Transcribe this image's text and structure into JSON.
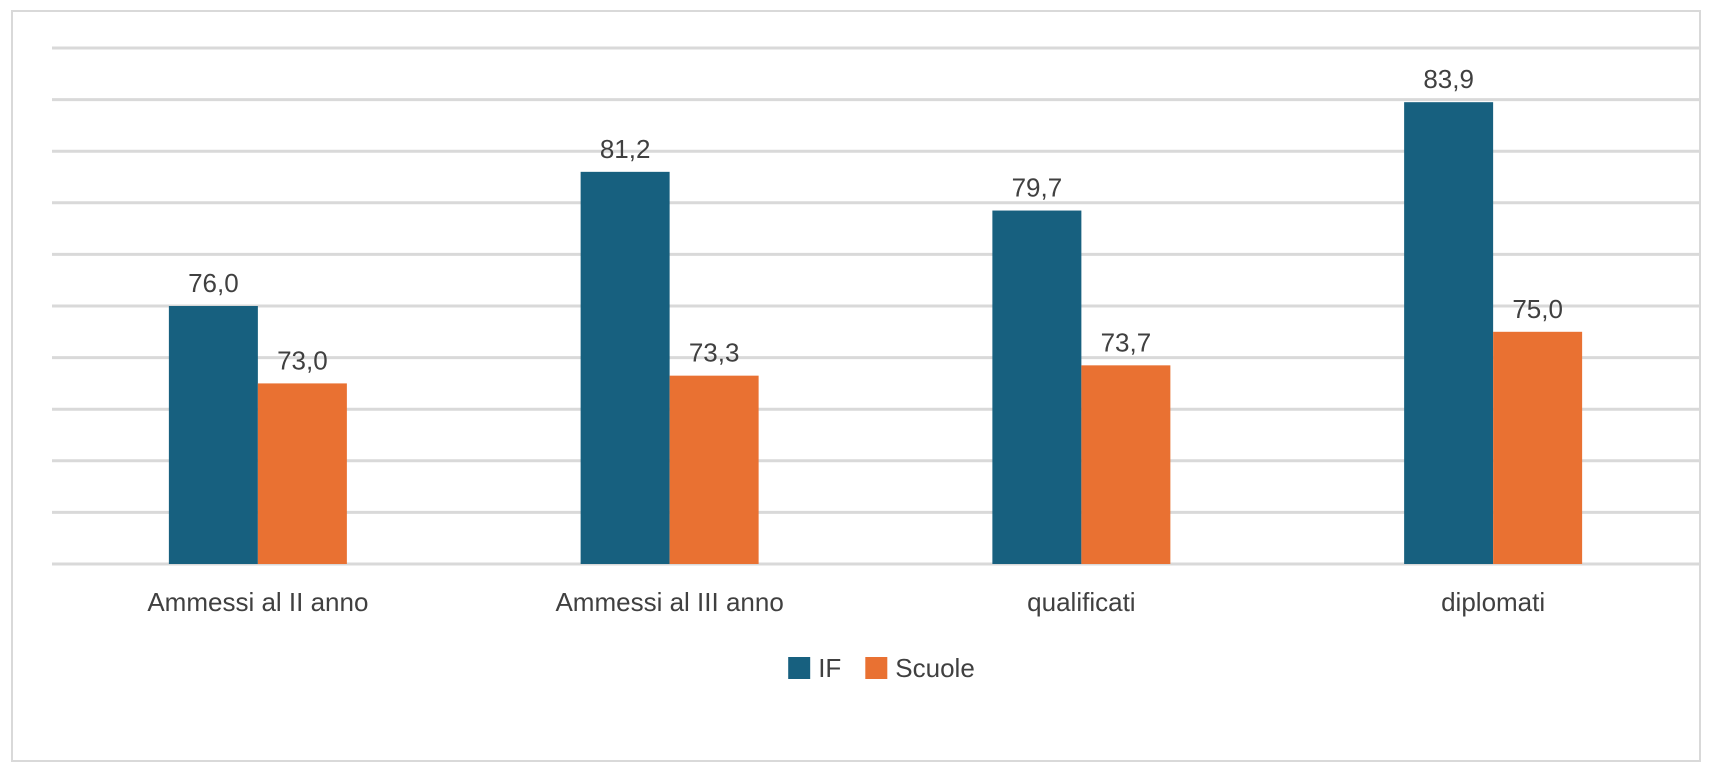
{
  "chart_data": {
    "type": "bar",
    "title": "",
    "xlabel": "",
    "ylabel": "",
    "categories": [
      "Ammessi al II anno",
      "Ammessi al III anno",
      "qualificati",
      "diplomati"
    ],
    "series": [
      {
        "name": "IF",
        "values": [
          76.0,
          81.2,
          79.7,
          83.9
        ],
        "labels": [
          "76,0",
          "81,2",
          "79,7",
          "83,9"
        ],
        "color": "#17607f"
      },
      {
        "name": "Scuole",
        "values": [
          73.0,
          73.3,
          73.7,
          75.0
        ],
        "labels": [
          "73,0",
          "73,3",
          "73,7",
          "75,0"
        ],
        "color": "#e97132"
      }
    ],
    "ylim": [
      66,
      86
    ],
    "y_axis_visible": false,
    "grid": true,
    "gridline_step": 2,
    "legend_position": "bottom"
  }
}
